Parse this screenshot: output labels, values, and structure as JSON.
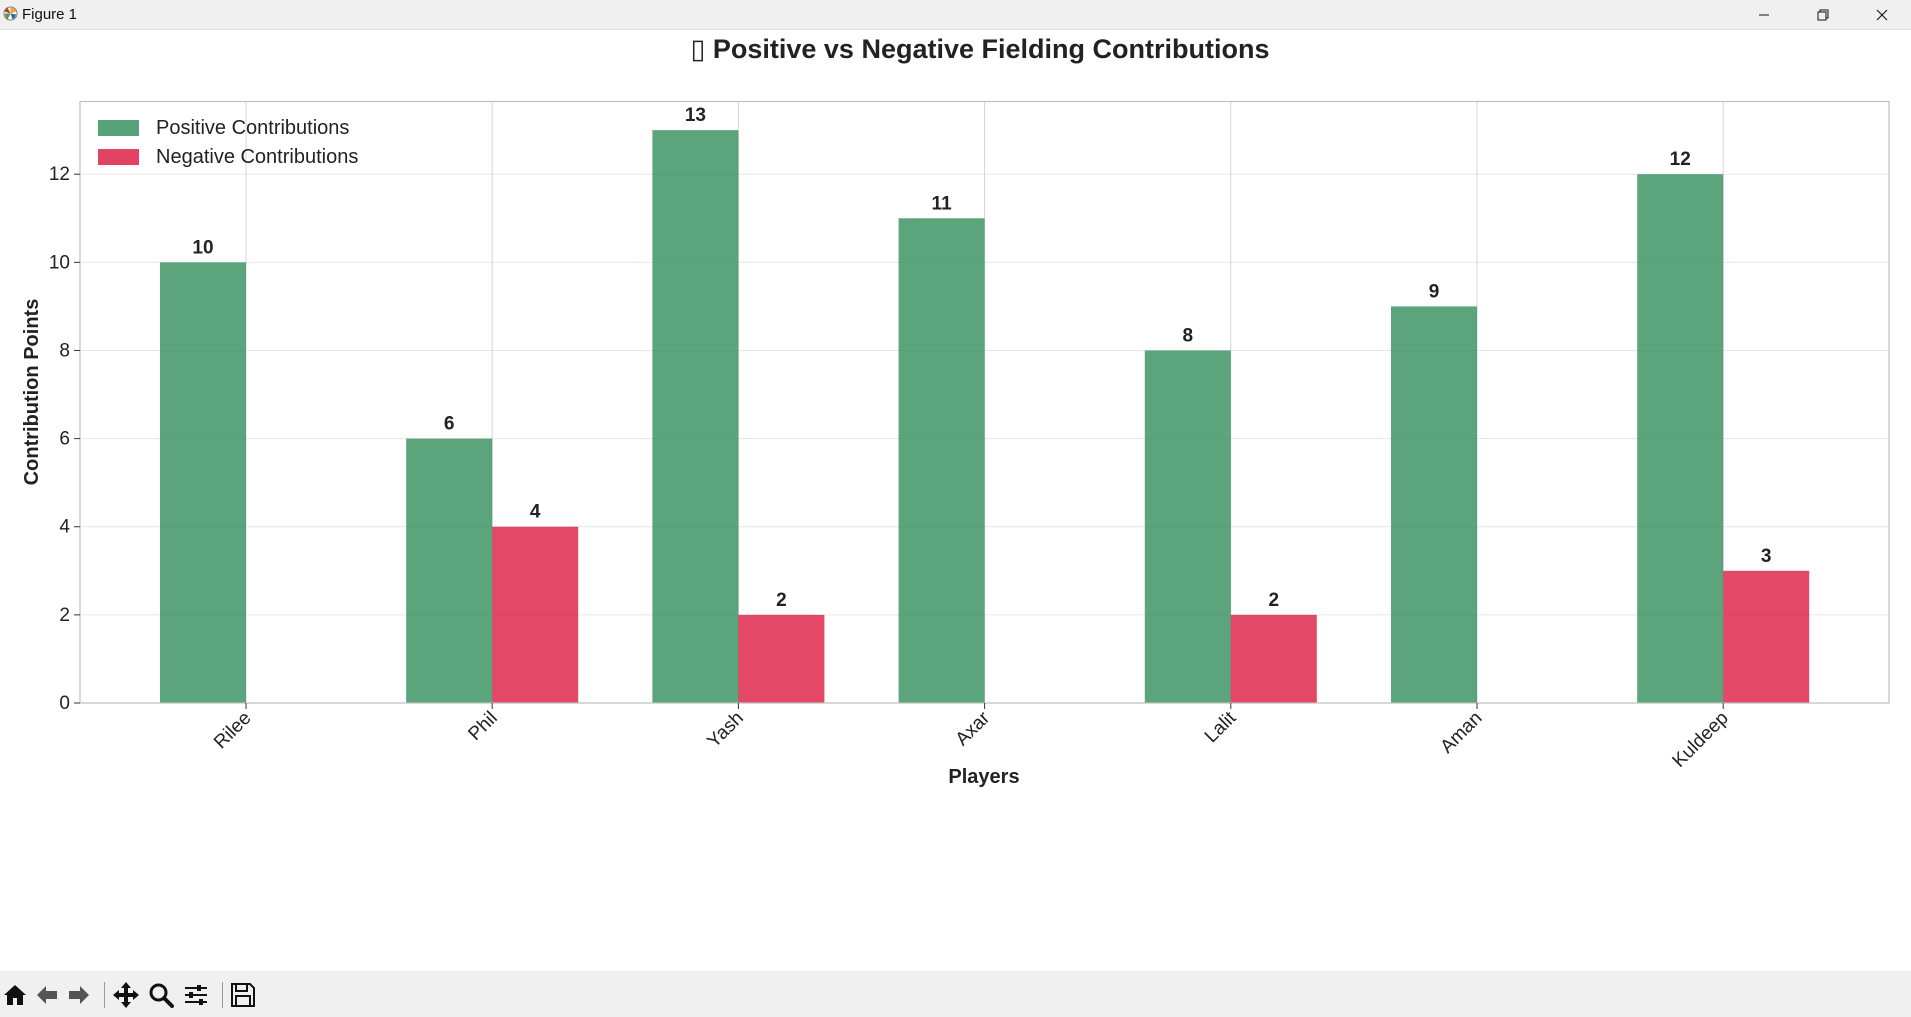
{
  "window": {
    "title": "Figure 1"
  },
  "colors": {
    "positive": "#2e8b57",
    "negative": "#dc143c"
  },
  "chart_data": {
    "type": "bar",
    "title": "▯ Positive vs Negative Fielding Contributions",
    "xlabel": "Players",
    "ylabel": "Contribution Points",
    "categories": [
      "Rilee",
      "Phil",
      "Yash",
      "Axar",
      "Lalit",
      "Aman",
      "Kuldeep"
    ],
    "series": [
      {
        "name": "Positive Contributions",
        "values": [
          10,
          6,
          13,
          11,
          8,
          9,
          12
        ],
        "labels": [
          "10",
          "6",
          "13",
          "11",
          "8",
          "9",
          "12"
        ]
      },
      {
        "name": "Negative Contributions",
        "values": [
          0,
          4,
          2,
          0,
          2,
          0,
          3
        ],
        "labels": [
          "",
          "4",
          "2",
          "",
          "2",
          "",
          "3"
        ]
      }
    ],
    "ylim": [
      0,
      13.65
    ],
    "yticks": [
      0,
      2,
      4,
      6,
      8,
      10,
      12
    ],
    "ytick_labels": [
      "0",
      "2",
      "4",
      "6",
      "8",
      "10",
      "12"
    ],
    "grid": true,
    "legend_position": "top-left"
  },
  "toolbar": {
    "icons": [
      "home-icon",
      "back-arrow-icon",
      "forward-arrow-icon",
      "pan-icon",
      "zoom-icon",
      "configure-subplots-icon",
      "save-icon"
    ]
  }
}
